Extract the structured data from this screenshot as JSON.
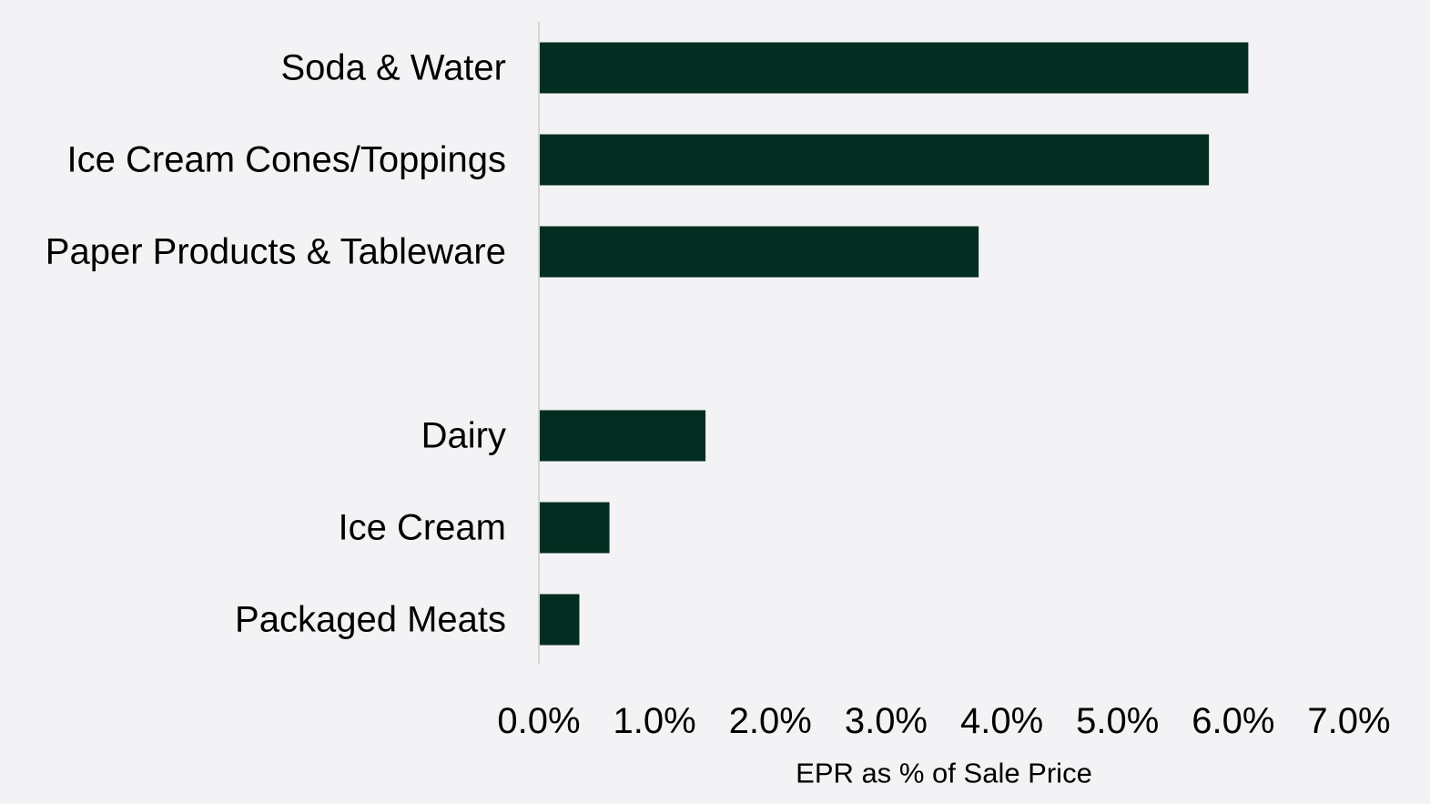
{
  "chart_data": {
    "type": "bar",
    "orientation": "horizontal",
    "categories": [
      "Soda & Water",
      "Ice Cream Cones/Toppings",
      "Paper Products & Tableware",
      "",
      "Dairy",
      "Ice Cream",
      "Packaged Meats"
    ],
    "values": [
      6.13,
      5.79,
      3.8,
      null,
      1.44,
      0.61,
      0.35
    ],
    "xlabel": "EPR as % of Sale Price",
    "ylabel": "",
    "xlim": [
      0,
      7
    ],
    "xticks": [
      0,
      1,
      2,
      3,
      4,
      5,
      6,
      7
    ],
    "xtick_labels": [
      "0.0%",
      "1.0%",
      "2.0%",
      "3.0%",
      "4.0%",
      "5.0%",
      "6.0%",
      "7.0%"
    ],
    "grid": false,
    "colors": {
      "bar": "#032d20",
      "axis": "#d4d4d4",
      "background": "#f3f3f5"
    }
  }
}
